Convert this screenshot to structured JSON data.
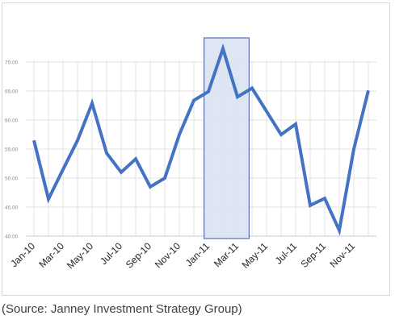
{
  "chart_data": {
    "type": "line",
    "title": "",
    "xlabel": "",
    "ylabel": "",
    "x": [
      "Jan-10",
      "Feb-10",
      "Mar-10",
      "Apr-10",
      "May-10",
      "Jun-10",
      "Jul-10",
      "Aug-10",
      "Sep-10",
      "Oct-10",
      "Nov-10",
      "Dec-10",
      "Jan-11",
      "Feb-11",
      "Mar-11",
      "Apr-11",
      "May-11",
      "Jun-11",
      "Jul-11",
      "Aug-11",
      "Sep-11",
      "Oct-11",
      "Nov-11",
      "Dec-11"
    ],
    "x_tick_labels": [
      "Jan-10",
      "Mar-10",
      "May-10",
      "Jul-10",
      "Sep-10",
      "Nov-10",
      "Jan-11",
      "Mar-11",
      "May-11",
      "Jul-11",
      "Sep-11",
      "Nov-11"
    ],
    "series": [
      {
        "values": [
          56.5,
          46.4,
          51.5,
          56.5,
          62.9,
          54.3,
          51.0,
          53.3,
          48.5,
          50.0,
          57.5,
          63.4,
          64.9,
          72.3,
          64.0,
          65.5,
          61.5,
          57.5,
          59.3,
          45.3,
          46.5,
          41.0,
          55.0,
          65.1
        ]
      }
    ],
    "ylim": [
      40,
      70
    ],
    "y_ticks": [
      40,
      45,
      50,
      55,
      60,
      65,
      70
    ],
    "y_tick_labels": [
      "40.00",
      "45.00",
      "50.00",
      "55.00",
      "60.00",
      "65.00",
      "70.00"
    ],
    "highlight": {
      "start": "Dec-10",
      "end": "Apr-11",
      "fill": "#dae3f3",
      "stroke": "#5a6fb0"
    },
    "colors": {
      "line": "#4472c4",
      "grid": "#e3e3e3"
    },
    "grid": true,
    "legend": "none"
  },
  "source": "(Source: Janney Investment Strategy Group)"
}
